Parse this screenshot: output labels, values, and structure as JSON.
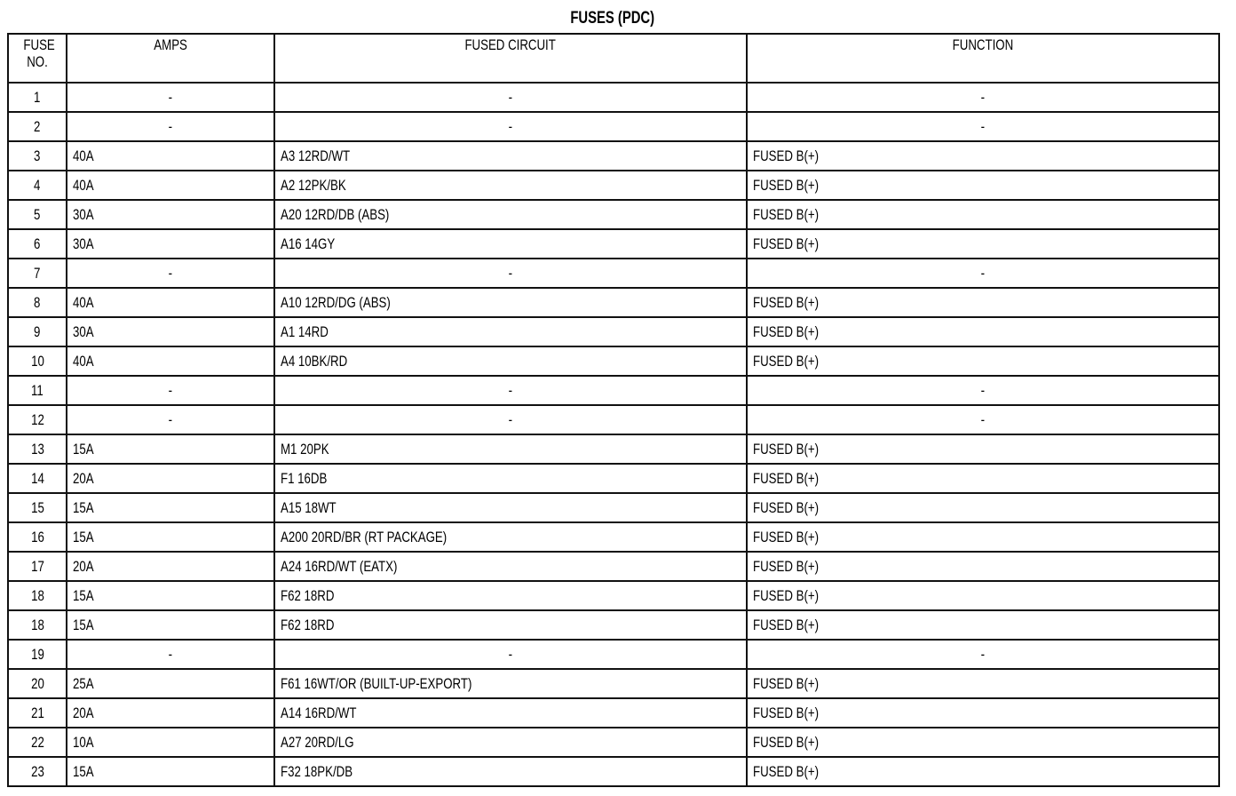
{
  "title": "FUSES (PDC)",
  "headers": {
    "fuse_no": "FUSE NO.",
    "amps": "AMPS",
    "circuit": "FUSED CIRCUIT",
    "function": "FUNCTION"
  },
  "rows": [
    {
      "fuse": "1",
      "amps": "-",
      "circuit": "-",
      "function": "-"
    },
    {
      "fuse": "2",
      "amps": "-",
      "circuit": "-",
      "function": "-"
    },
    {
      "fuse": "3",
      "amps": "40A",
      "circuit": "A3 12RD/WT",
      "function": "FUSED B(+)"
    },
    {
      "fuse": "4",
      "amps": "40A",
      "circuit": "A2 12PK/BK",
      "function": "FUSED B(+)"
    },
    {
      "fuse": "5",
      "amps": "30A",
      "circuit": "A20 12RD/DB (ABS)",
      "function": "FUSED B(+)"
    },
    {
      "fuse": "6",
      "amps": "30A",
      "circuit": "A16 14GY",
      "function": "FUSED B(+)"
    },
    {
      "fuse": "7",
      "amps": "-",
      "circuit": "-",
      "function": "-"
    },
    {
      "fuse": "8",
      "amps": "40A",
      "circuit": "A10 12RD/DG (ABS)",
      "function": "FUSED B(+)"
    },
    {
      "fuse": "9",
      "amps": "30A",
      "circuit": "A1 14RD",
      "function": "FUSED B(+)"
    },
    {
      "fuse": "10",
      "amps": "40A",
      "circuit": "A4 10BK/RD",
      "function": "FUSED B(+)"
    },
    {
      "fuse": "11",
      "amps": "-",
      "circuit": "-",
      "function": "-"
    },
    {
      "fuse": "12",
      "amps": "-",
      "circuit": "-",
      "function": "-"
    },
    {
      "fuse": "13",
      "amps": "15A",
      "circuit": "M1 20PK",
      "function": "FUSED B(+)"
    },
    {
      "fuse": "14",
      "amps": "20A",
      "circuit": "F1 16DB",
      "function": "FUSED B(+)"
    },
    {
      "fuse": "15",
      "amps": "15A",
      "circuit": "A15 18WT",
      "function": "FUSED B(+)"
    },
    {
      "fuse": "16",
      "amps": "15A",
      "circuit": "A200 20RD/BR (RT PACKAGE)",
      "function": "FUSED B(+)"
    },
    {
      "fuse": "17",
      "amps": "20A",
      "circuit": "A24 16RD/WT (EATX)",
      "function": "FUSED B(+)"
    },
    {
      "fuse": "18",
      "amps": "15A",
      "circuit": "F62 18RD",
      "function": "FUSED B(+)"
    },
    {
      "fuse": "18",
      "amps": "15A",
      "circuit": "F62 18RD",
      "function": "FUSED B(+)"
    },
    {
      "fuse": "19",
      "amps": "-",
      "circuit": "-",
      "function": "-"
    },
    {
      "fuse": "20",
      "amps": "25A",
      "circuit": "F61 16WT/OR (BUILT-UP-EXPORT)",
      "function": "FUSED B(+)"
    },
    {
      "fuse": "21",
      "amps": "20A",
      "circuit": "A14 16RD/WT",
      "function": "FUSED B(+)"
    },
    {
      "fuse": "22",
      "amps": "10A",
      "circuit": "A27 20RD/LG",
      "function": "FUSED B(+)"
    },
    {
      "fuse": "23",
      "amps": "15A",
      "circuit": "F32 18PK/DB",
      "function": "FUSED B(+)"
    }
  ]
}
